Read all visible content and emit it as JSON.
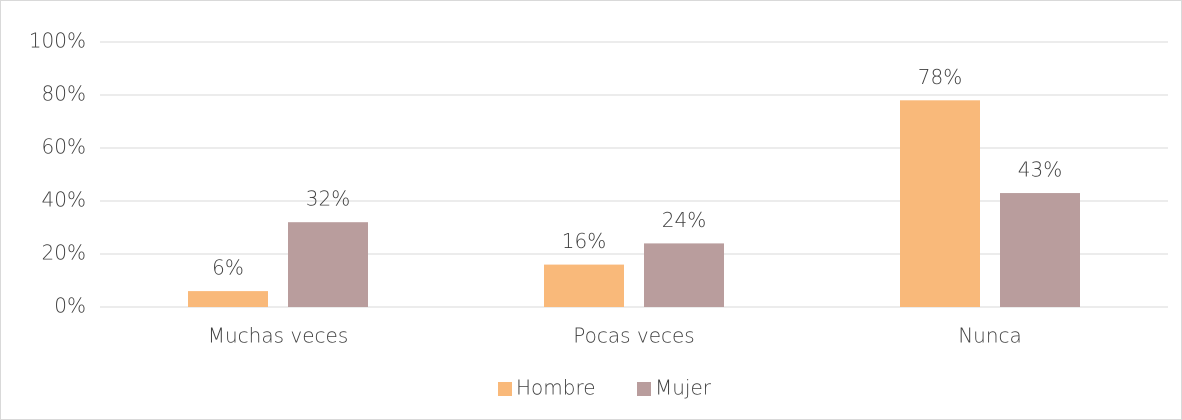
{
  "chart_data": {
    "type": "bar",
    "categories": [
      "Muchas veces",
      "Pocas veces",
      "Nunca"
    ],
    "series": [
      {
        "name": "Hombre",
        "color": "#f9b97a",
        "values": [
          6,
          16,
          78
        ],
        "value_labels": [
          "6%",
          "16%",
          "78%"
        ]
      },
      {
        "name": "Mujer",
        "color": "#b99d9d",
        "values": [
          32,
          24,
          43
        ],
        "value_labels": [
          "32%",
          "24%",
          "43%"
        ]
      }
    ],
    "ylim": [
      0,
      100
    ],
    "yticks": [
      {
        "value": 0,
        "label": "0%"
      },
      {
        "value": 20,
        "label": "20%"
      },
      {
        "value": 40,
        "label": "40%"
      },
      {
        "value": 60,
        "label": "60%"
      },
      {
        "value": 80,
        "label": "80%"
      },
      {
        "value": 100,
        "label": "100%"
      }
    ],
    "grid": true,
    "legend": "bottom"
  }
}
